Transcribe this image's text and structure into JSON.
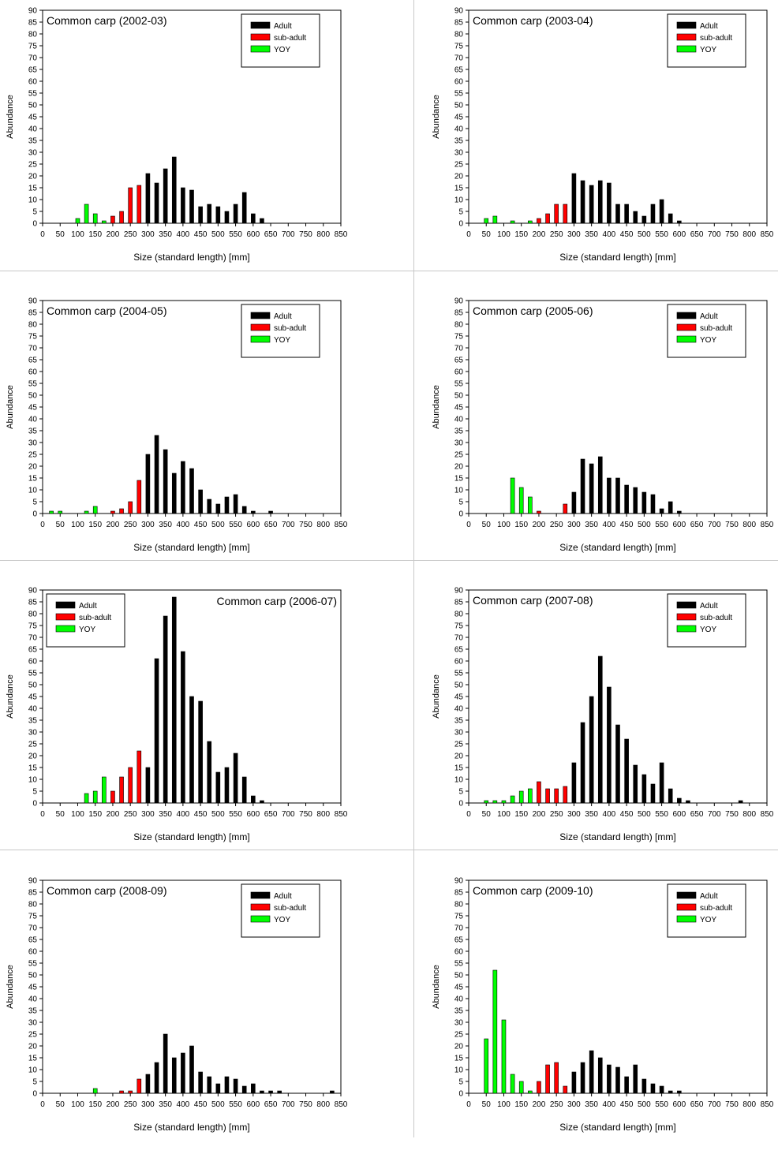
{
  "colors": {
    "Adult": "#000000",
    "sub-adult": "#ff0000",
    "YOY": "#00ff00"
  },
  "chart_data": [
    {
      "type": "bar",
      "title": "Common carp (2002-03)",
      "xlabel": "Size (standard length) [mm]",
      "ylabel": "Abundance",
      "xlim": [
        0,
        850
      ],
      "ylim": [
        0,
        90
      ],
      "xticks": [
        "0",
        "50",
        "100",
        "150",
        "200",
        "250",
        "300",
        "350",
        "400",
        "450",
        "500",
        "550",
        "600",
        "650",
        "700",
        "750",
        "800",
        "850"
      ],
      "yticks": [
        "0",
        "5",
        "10",
        "15",
        "20",
        "25",
        "30",
        "35",
        "40",
        "45",
        "50",
        "55",
        "60",
        "65",
        "70",
        "75",
        "80",
        "85",
        "90"
      ],
      "legend_position": "top-right",
      "series": [
        {
          "name": "Adult",
          "x": [
            300,
            325,
            350,
            375,
            400,
            425,
            450,
            475,
            500,
            525,
            550,
            575,
            600,
            625
          ],
          "values": [
            21,
            17,
            23,
            28,
            15,
            14,
            7,
            8,
            7,
            5,
            8,
            13,
            4,
            2
          ]
        },
        {
          "name": "sub-adult",
          "x": [
            200,
            225,
            250,
            275
          ],
          "values": [
            3,
            5,
            15,
            16
          ]
        },
        {
          "name": "YOY",
          "x": [
            100,
            125,
            150,
            175
          ],
          "values": [
            2,
            8,
            4,
            1
          ]
        }
      ]
    },
    {
      "type": "bar",
      "title": "Common carp (2003-04)",
      "xlabel": "Size (standard length) [mm]",
      "ylabel": "Abundance",
      "xlim": [
        0,
        850
      ],
      "ylim": [
        0,
        90
      ],
      "xticks": [
        "0",
        "50",
        "100",
        "150",
        "200",
        "250",
        "300",
        "350",
        "400",
        "450",
        "500",
        "550",
        "600",
        "650",
        "700",
        "750",
        "800",
        "850"
      ],
      "yticks": [
        "0",
        "5",
        "10",
        "15",
        "20",
        "25",
        "30",
        "35",
        "40",
        "45",
        "50",
        "55",
        "60",
        "65",
        "70",
        "75",
        "80",
        "85",
        "90"
      ],
      "legend_position": "top-right",
      "series": [
        {
          "name": "Adult",
          "x": [
            300,
            325,
            350,
            375,
            400,
            425,
            450,
            475,
            500,
            525,
            550,
            575,
            600
          ],
          "values": [
            21,
            18,
            16,
            18,
            17,
            8,
            8,
            5,
            3,
            8,
            10,
            4,
            1
          ]
        },
        {
          "name": "sub-adult",
          "x": [
            200,
            225,
            250,
            275
          ],
          "values": [
            2,
            4,
            8,
            8
          ]
        },
        {
          "name": "YOY",
          "x": [
            50,
            75,
            125,
            175
          ],
          "values": [
            2,
            3,
            1,
            1
          ]
        }
      ]
    },
    {
      "type": "bar",
      "title": "Common carp (2004-05)",
      "xlabel": "Size (standard length) [mm]",
      "ylabel": "Abundance",
      "xlim": [
        0,
        850
      ],
      "ylim": [
        0,
        90
      ],
      "xticks": [
        "0",
        "50",
        "100",
        "150",
        "200",
        "250",
        "300",
        "350",
        "400",
        "450",
        "500",
        "550",
        "600",
        "650",
        "700",
        "750",
        "800",
        "850"
      ],
      "yticks": [
        "0",
        "5",
        "10",
        "15",
        "20",
        "25",
        "30",
        "35",
        "40",
        "45",
        "50",
        "55",
        "60",
        "65",
        "70",
        "75",
        "80",
        "85",
        "90"
      ],
      "legend_position": "top-right",
      "series": [
        {
          "name": "Adult",
          "x": [
            300,
            325,
            350,
            375,
            400,
            425,
            450,
            475,
            500,
            525,
            550,
            575,
            600,
            650
          ],
          "values": [
            25,
            33,
            27,
            17,
            22,
            19,
            10,
            6,
            4,
            7,
            8,
            3,
            1,
            1
          ]
        },
        {
          "name": "sub-adult",
          "x": [
            200,
            225,
            250,
            275
          ],
          "values": [
            1,
            2,
            5,
            14
          ]
        },
        {
          "name": "YOY",
          "x": [
            25,
            50,
            125,
            150
          ],
          "values": [
            1,
            1,
            1,
            3
          ]
        }
      ]
    },
    {
      "type": "bar",
      "title": "Common carp (2005-06)",
      "xlabel": "Size (standard length) [mm]",
      "ylabel": "Abundance",
      "xlim": [
        0,
        850
      ],
      "ylim": [
        0,
        90
      ],
      "xticks": [
        "0",
        "50",
        "100",
        "150",
        "200",
        "250",
        "300",
        "350",
        "400",
        "450",
        "500",
        "550",
        "600",
        "650",
        "700",
        "750",
        "800",
        "850"
      ],
      "yticks": [
        "0",
        "5",
        "10",
        "15",
        "20",
        "25",
        "30",
        "35",
        "40",
        "45",
        "50",
        "55",
        "60",
        "65",
        "70",
        "75",
        "80",
        "85",
        "90"
      ],
      "legend_position": "top-right",
      "series": [
        {
          "name": "Adult",
          "x": [
            300,
            325,
            350,
            375,
            400,
            425,
            450,
            475,
            500,
            525,
            550,
            575,
            600
          ],
          "values": [
            9,
            23,
            21,
            24,
            15,
            15,
            12,
            11,
            9,
            8,
            2,
            5,
            1
          ]
        },
        {
          "name": "sub-adult",
          "x": [
            200,
            275
          ],
          "values": [
            1,
            4
          ]
        },
        {
          "name": "YOY",
          "x": [
            125,
            150,
            175
          ],
          "values": [
            15,
            11,
            7
          ]
        }
      ]
    },
    {
      "type": "bar",
      "title": "Common carp (2006-07)",
      "xlabel": "Size (standard length) [mm]",
      "ylabel": "Abundance",
      "xlim": [
        0,
        850
      ],
      "ylim": [
        0,
        90
      ],
      "xticks": [
        "0",
        "50",
        "100",
        "150",
        "200",
        "250",
        "300",
        "350",
        "400",
        "450",
        "500",
        "550",
        "600",
        "650",
        "700",
        "750",
        "800",
        "850"
      ],
      "yticks": [
        "0",
        "5",
        "10",
        "15",
        "20",
        "25",
        "30",
        "35",
        "40",
        "45",
        "50",
        "55",
        "60",
        "65",
        "70",
        "75",
        "80",
        "85",
        "90"
      ],
      "legend_position": "top-left",
      "series": [
        {
          "name": "Adult",
          "x": [
            300,
            325,
            350,
            375,
            400,
            425,
            450,
            475,
            500,
            525,
            550,
            575,
            600,
            625
          ],
          "values": [
            15,
            61,
            79,
            87,
            64,
            45,
            43,
            26,
            13,
            15,
            21,
            11,
            3,
            1
          ]
        },
        {
          "name": "sub-adult",
          "x": [
            200,
            225,
            250,
            275
          ],
          "values": [
            5,
            11,
            15,
            22
          ]
        },
        {
          "name": "YOY",
          "x": [
            125,
            150,
            175
          ],
          "values": [
            4,
            5,
            11
          ]
        }
      ]
    },
    {
      "type": "bar",
      "title": "Common carp (2007-08)",
      "xlabel": "Size (standard length) [mm]",
      "ylabel": "Abundance",
      "xlim": [
        0,
        850
      ],
      "ylim": [
        0,
        90
      ],
      "xticks": [
        "0",
        "50",
        "100",
        "150",
        "200",
        "250",
        "300",
        "350",
        "400",
        "450",
        "500",
        "550",
        "600",
        "650",
        "700",
        "750",
        "800",
        "850"
      ],
      "yticks": [
        "0",
        "5",
        "10",
        "15",
        "20",
        "25",
        "30",
        "35",
        "40",
        "45",
        "50",
        "55",
        "60",
        "65",
        "70",
        "75",
        "80",
        "85",
        "90"
      ],
      "legend_position": "top-right",
      "series": [
        {
          "name": "Adult",
          "x": [
            300,
            325,
            350,
            375,
            400,
            425,
            450,
            475,
            500,
            525,
            550,
            575,
            600,
            625,
            775
          ],
          "values": [
            17,
            34,
            45,
            62,
            49,
            33,
            27,
            16,
            12,
            8,
            17,
            6,
            2,
            1,
            1
          ]
        },
        {
          "name": "sub-adult",
          "x": [
            200,
            225,
            250,
            275
          ],
          "values": [
            9,
            6,
            6,
            7
          ]
        },
        {
          "name": "YOY",
          "x": [
            50,
            75,
            100,
            125,
            150,
            175
          ],
          "values": [
            1,
            1,
            1,
            3,
            5,
            6
          ]
        }
      ]
    },
    {
      "type": "bar",
      "title": "Common carp (2008-09)",
      "xlabel": "Size (standard length) [mm]",
      "ylabel": "Abundance",
      "xlim": [
        0,
        850
      ],
      "ylim": [
        0,
        90
      ],
      "xticks": [
        "0",
        "50",
        "100",
        "150",
        "200",
        "250",
        "300",
        "350",
        "400",
        "450",
        "500",
        "550",
        "600",
        "650",
        "700",
        "750",
        "800",
        "850"
      ],
      "yticks": [
        "0",
        "5",
        "10",
        "15",
        "20",
        "25",
        "30",
        "35",
        "40",
        "45",
        "50",
        "55",
        "60",
        "65",
        "70",
        "75",
        "80",
        "85",
        "90"
      ],
      "legend_position": "top-right",
      "series": [
        {
          "name": "Adult",
          "x": [
            300,
            325,
            350,
            375,
            400,
            425,
            450,
            475,
            500,
            525,
            550,
            575,
            600,
            625,
            650,
            675,
            825
          ],
          "values": [
            8,
            13,
            25,
            15,
            17,
            20,
            9,
            7,
            4,
            7,
            6,
            3,
            4,
            1,
            1,
            1,
            1
          ]
        },
        {
          "name": "sub-adult",
          "x": [
            225,
            250,
            275
          ],
          "values": [
            1,
            1,
            6
          ]
        },
        {
          "name": "YOY",
          "x": [
            150
          ],
          "values": [
            2
          ]
        }
      ]
    },
    {
      "type": "bar",
      "title": "Common carp (2009-10)",
      "xlabel": "Size (standard length) [mm]",
      "ylabel": "Abundance",
      "xlim": [
        0,
        850
      ],
      "ylim": [
        0,
        90
      ],
      "xticks": [
        "0",
        "50",
        "100",
        "150",
        "200",
        "250",
        "300",
        "350",
        "400",
        "450",
        "500",
        "550",
        "600",
        "650",
        "700",
        "750",
        "800",
        "850"
      ],
      "yticks": [
        "0",
        "5",
        "10",
        "15",
        "20",
        "25",
        "30",
        "35",
        "40",
        "45",
        "50",
        "55",
        "60",
        "65",
        "70",
        "75",
        "80",
        "85",
        "90"
      ],
      "legend_position": "top-right",
      "series": [
        {
          "name": "Adult",
          "x": [
            300,
            325,
            350,
            375,
            400,
            425,
            450,
            475,
            500,
            525,
            550,
            575,
            600
          ],
          "values": [
            9,
            13,
            18,
            15,
            12,
            11,
            7,
            12,
            6,
            4,
            3,
            1,
            1
          ]
        },
        {
          "name": "sub-adult",
          "x": [
            200,
            225,
            250,
            275
          ],
          "values": [
            5,
            12,
            13,
            3
          ]
        },
        {
          "name": "YOY",
          "x": [
            50,
            75,
            100,
            125,
            150,
            175
          ],
          "values": [
            23,
            52,
            31,
            8,
            5,
            1
          ]
        }
      ]
    }
  ]
}
